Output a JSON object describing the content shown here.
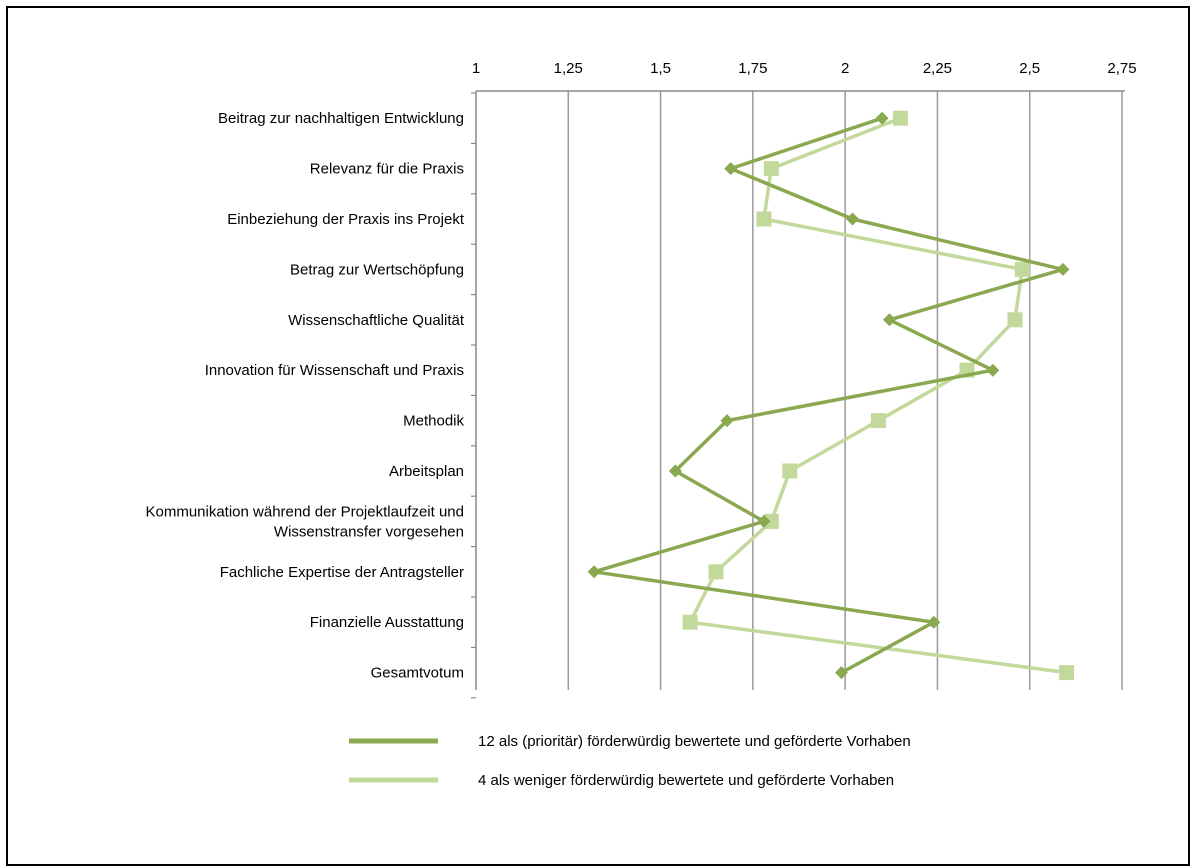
{
  "chart_data": {
    "type": "line",
    "orientation": "horizontal",
    "title": "",
    "xlabel": "",
    "ylabel": "",
    "xlim": [
      1,
      2.75
    ],
    "x_ticks": [
      1,
      1.25,
      1.5,
      1.75,
      2,
      2.25,
      2.5,
      2.75
    ],
    "x_tick_labels": [
      "1",
      "1,25",
      "1,5",
      "1,75",
      "2",
      "2,25",
      "2,5",
      "2,75"
    ],
    "grid": true,
    "legend_position": "bottom",
    "categories": [
      [
        "Beitrag zur nachhaltigen Entwicklung"
      ],
      [
        "Relevanz für die Praxis"
      ],
      [
        "Einbeziehung der Praxis ins Projekt"
      ],
      [
        "Betrag zur Wertschöpfung"
      ],
      [
        "Wissenschaftliche Qualität"
      ],
      [
        "Innovation für Wissenschaft und Praxis"
      ],
      [
        "Methodik"
      ],
      [
        "Arbeitsplan"
      ],
      [
        "Kommunikation während der Projektlaufzeit und",
        "Wissenstransfer vorgesehen"
      ],
      [
        "Fachliche Expertise der Antragsteller"
      ],
      [
        "Finanzielle Ausstattung"
      ],
      [
        "Gesamtvotum"
      ]
    ],
    "series": [
      {
        "name": "12 als (prioritär) förderwürdig bewertete und geförderte Vorhaben",
        "color": "#8aa84f",
        "marker": "diamond",
        "values": [
          2.1,
          1.69,
          2.02,
          2.59,
          2.12,
          2.4,
          1.68,
          1.54,
          1.78,
          1.32,
          2.24,
          1.99
        ]
      },
      {
        "name": "4 als weniger förderwürdig bewertete und geförderte Vorhaben",
        "color": "#c3d89b",
        "marker": "square",
        "values": [
          2.15,
          1.8,
          1.78,
          2.48,
          2.46,
          2.33,
          2.09,
          1.85,
          1.8,
          1.65,
          1.58,
          2.6
        ]
      }
    ]
  }
}
